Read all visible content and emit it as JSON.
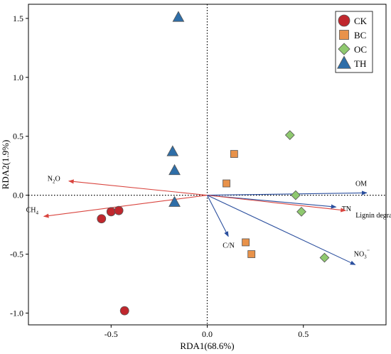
{
  "chart_data": {
    "type": "scatter",
    "xlabel": "RDA1(68.6%)",
    "ylabel": "RDA2(1.9%)",
    "xlim": [
      -0.93,
      0.93
    ],
    "ylim": [
      -1.1,
      1.62
    ],
    "xticks": [
      {
        "value": -0.5,
        "label": "-0.5"
      },
      {
        "value": 0.0,
        "label": "0.0"
      },
      {
        "value": 0.5,
        "label": "0.5"
      }
    ],
    "yticks": [
      {
        "value": -1.0,
        "label": "-1.0"
      },
      {
        "value": -0.5,
        "label": "-0.5"
      },
      {
        "value": 0.0,
        "label": "0.0"
      },
      {
        "value": 0.5,
        "label": "0.5"
      },
      {
        "value": 1.0,
        "label": "1.0"
      },
      {
        "value": 1.5,
        "label": "1.5"
      }
    ],
    "grid": false,
    "reference_lines": {
      "x": 0,
      "y": 0,
      "style": "dotted"
    },
    "legend_position": "top-right",
    "series": [
      {
        "name": "CK",
        "marker": "circle",
        "color": "#c0272d",
        "points": [
          [
            -0.55,
            -0.2
          ],
          [
            -0.5,
            -0.14
          ],
          [
            -0.46,
            -0.13
          ],
          [
            -0.43,
            -0.98
          ]
        ]
      },
      {
        "name": "BC",
        "marker": "square",
        "color": "#e8924a",
        "points": [
          [
            0.14,
            0.35
          ],
          [
            0.1,
            0.1
          ],
          [
            0.2,
            -0.4
          ],
          [
            0.23,
            -0.5
          ]
        ]
      },
      {
        "name": "OC",
        "marker": "diamond",
        "color": "#8fc96f",
        "points": [
          [
            0.43,
            0.51
          ],
          [
            0.46,
            0.0
          ],
          [
            0.49,
            -0.14
          ],
          [
            0.61,
            -0.53
          ]
        ]
      },
      {
        "name": "TH",
        "marker": "triangle",
        "color": "#2e6ea8",
        "points": [
          [
            -0.15,
            1.51
          ],
          [
            -0.18,
            0.37
          ],
          [
            -0.17,
            0.21
          ],
          [
            -0.17,
            -0.06
          ]
        ]
      }
    ],
    "vectors": [
      {
        "name": "N2O",
        "display": {
          "base": "N",
          "sub": "2",
          "rest": "O"
        },
        "x": -0.72,
        "y": 0.12,
        "color": "#d9453f"
      },
      {
        "name": "CH4",
        "display": {
          "base": "CH",
          "sub": "4",
          "rest": ""
        },
        "x": -0.85,
        "y": -0.18,
        "color": "#d9453f"
      },
      {
        "name": "C/N",
        "display": {
          "base": "C/N",
          "sub": "",
          "rest": ""
        },
        "x": 0.11,
        "y": -0.35,
        "color": "#2b4f9e"
      },
      {
        "name": "OM",
        "display": {
          "base": "OM",
          "sub": "",
          "rest": ""
        },
        "x": 0.83,
        "y": 0.02,
        "color": "#2b4f9e"
      },
      {
        "name": "TN",
        "display": {
          "base": "TN",
          "sub": "",
          "rest": ""
        },
        "x": 0.67,
        "y": -0.1,
        "color": "#2b4f9e"
      },
      {
        "name": "Lignin degradation rate",
        "display": {
          "base": "Lignin degradation rate",
          "sub": "",
          "rest": ""
        },
        "x": 0.72,
        "y": -0.13,
        "color": "#d9453f"
      },
      {
        "name": "NO3-",
        "display": {
          "base": "NO",
          "sub": "3",
          "rest": "⁻"
        },
        "x": 0.77,
        "y": -0.59,
        "color": "#2b4f9e"
      }
    ]
  }
}
